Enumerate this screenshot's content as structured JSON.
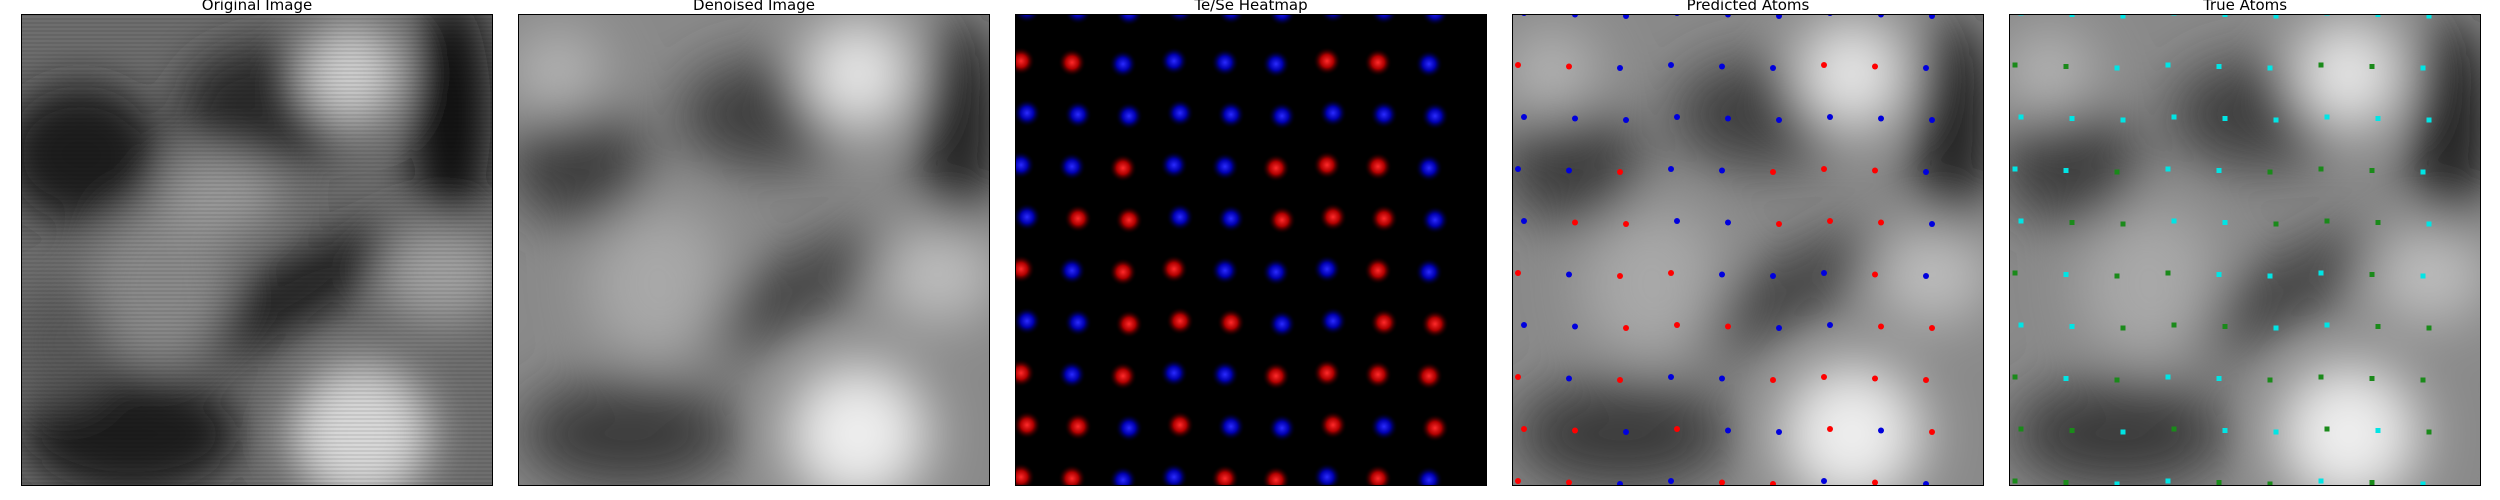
{
  "panels": [
    {
      "id": "original",
      "title": "Original Image"
    },
    {
      "id": "denoised",
      "title": "Denoised Image"
    },
    {
      "id": "heatmap",
      "title": "Te/Se Heatmap"
    },
    {
      "id": "predicted",
      "title": "Predicted Atoms"
    },
    {
      "id": "true",
      "title": "True Atoms"
    }
  ],
  "colors": {
    "te": "#ff1010",
    "se": "#1a1aff",
    "pred_red": "#ff0000",
    "pred_blue": "#0000dd",
    "true_cyan": "#00e5e5",
    "true_green": "#1a8a1a",
    "background": "#000000"
  }
}
